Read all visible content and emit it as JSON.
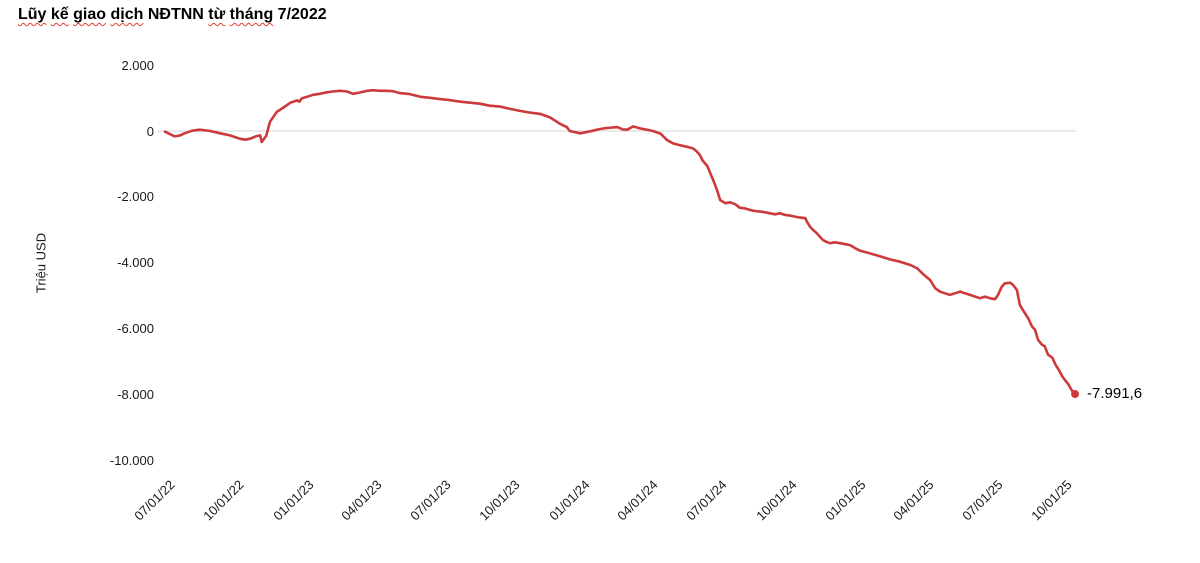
{
  "title": {
    "full_text": "Lũy kế giao dịch NĐTNN từ tháng 7/2022",
    "parts": [
      {
        "t": "Lũy",
        "wavy": true
      },
      {
        "t": "kế",
        "wavy": true
      },
      {
        "t": "giao",
        "wavy": true
      },
      {
        "t": "dịch",
        "wavy": true
      },
      {
        "t": "NĐTNN",
        "wavy": false
      },
      {
        "t": "từ",
        "wavy": true
      },
      {
        "t": "tháng",
        "wavy": true
      },
      {
        "t": "7/2022",
        "wavy": false
      }
    ]
  },
  "colors": {
    "line": "#cc3a3b",
    "gridline": "#dddddd",
    "squiggle": "#e53d2e",
    "axis_text": "#1a1a1a",
    "title_text": "#000000"
  },
  "chart_data": {
    "type": "line",
    "title": "Lũy kế giao dịch NĐTNN từ tháng 7/2022",
    "ylabel": "Triệu USD",
    "x_unit": "days since 2022-07-01",
    "ylim": [
      -10000,
      2000
    ],
    "grid": "zero-line only",
    "legend": "none",
    "end_label": "-7.991,6",
    "end_value": -7991.6,
    "y_ticks": [
      {
        "label": "2.000",
        "value": 2000
      },
      {
        "label": "0",
        "value": 0
      },
      {
        "label": "-2.000",
        "value": -2000
      },
      {
        "label": "-4.000",
        "value": -4000
      },
      {
        "label": "-6.000",
        "value": -6000
      },
      {
        "label": "-8.000",
        "value": -8000
      },
      {
        "label": "-10.000",
        "value": -10000
      }
    ],
    "x_ticks": [
      {
        "label": "07/01/22",
        "day": 0
      },
      {
        "label": "10/01/22",
        "day": 92
      },
      {
        "label": "01/01/23",
        "day": 184
      },
      {
        "label": "04/01/23",
        "day": 274
      },
      {
        "label": "07/01/23",
        "day": 365
      },
      {
        "label": "10/01/23",
        "day": 457
      },
      {
        "label": "01/01/24",
        "day": 549
      },
      {
        "label": "04/01/24",
        "day": 640
      },
      {
        "label": "07/01/24",
        "day": 731
      },
      {
        "label": "10/01/24",
        "day": 823
      },
      {
        "label": "01/01/25",
        "day": 915
      },
      {
        "label": "04/01/25",
        "day": 1005
      },
      {
        "label": "07/01/25",
        "day": 1096
      },
      {
        "label": "10/01/25",
        "day": 1188
      }
    ],
    "points": [
      [
        0,
        -20
      ],
      [
        7,
        -100
      ],
      [
        13,
        -165
      ],
      [
        20,
        -135
      ],
      [
        26,
        -70
      ],
      [
        36,
        10
      ],
      [
        46,
        40
      ],
      [
        60,
        0
      ],
      [
        73,
        -70
      ],
      [
        86,
        -135
      ],
      [
        99,
        -235
      ],
      [
        106,
        -265
      ],
      [
        113,
        -235
      ],
      [
        120,
        -165
      ],
      [
        126,
        -135
      ],
      [
        128,
        -335
      ],
      [
        134,
        -150
      ],
      [
        139,
        280
      ],
      [
        148,
        580
      ],
      [
        156,
        700
      ],
      [
        166,
        860
      ],
      [
        175,
        930
      ],
      [
        178,
        890
      ],
      [
        181,
        990
      ],
      [
        188,
        1040
      ],
      [
        196,
        1100
      ],
      [
        205,
        1130
      ],
      [
        215,
        1180
      ],
      [
        222,
        1200
      ],
      [
        232,
        1220
      ],
      [
        241,
        1200
      ],
      [
        249,
        1130
      ],
      [
        258,
        1170
      ],
      [
        268,
        1220
      ],
      [
        275,
        1240
      ],
      [
        285,
        1220
      ],
      [
        294,
        1220
      ],
      [
        302,
        1210
      ],
      [
        311,
        1150
      ],
      [
        324,
        1120
      ],
      [
        338,
        1040
      ],
      [
        351,
        1010
      ],
      [
        364,
        970
      ],
      [
        377,
        940
      ],
      [
        391,
        890
      ],
      [
        404,
        860
      ],
      [
        417,
        830
      ],
      [
        430,
        770
      ],
      [
        444,
        740
      ],
      [
        457,
        670
      ],
      [
        470,
        610
      ],
      [
        483,
        560
      ],
      [
        497,
        520
      ],
      [
        510,
        410
      ],
      [
        523,
        220
      ],
      [
        532,
        120
      ],
      [
        536,
        0
      ],
      [
        550,
        -70
      ],
      [
        563,
        -10
      ],
      [
        576,
        60
      ],
      [
        585,
        90
      ],
      [
        599,
        120
      ],
      [
        606,
        50
      ],
      [
        612,
        40
      ],
      [
        620,
        140
      ],
      [
        629,
        80
      ],
      [
        638,
        40
      ],
      [
        646,
        0
      ],
      [
        656,
        -80
      ],
      [
        665,
        -280
      ],
      [
        673,
        -380
      ],
      [
        682,
        -430
      ],
      [
        691,
        -480
      ],
      [
        699,
        -530
      ],
      [
        704,
        -620
      ],
      [
        708,
        -720
      ],
      [
        712,
        -900
      ],
      [
        718,
        -1060
      ],
      [
        722,
        -1280
      ],
      [
        726,
        -1500
      ],
      [
        731,
        -1800
      ],
      [
        735,
        -2095
      ],
      [
        742,
        -2195
      ],
      [
        748,
        -2165
      ],
      [
        755,
        -2225
      ],
      [
        761,
        -2330
      ],
      [
        768,
        -2350
      ],
      [
        775,
        -2400
      ],
      [
        781,
        -2430
      ],
      [
        788,
        -2450
      ],
      [
        795,
        -2470
      ],
      [
        801,
        -2500
      ],
      [
        808,
        -2530
      ],
      [
        814,
        -2500
      ],
      [
        821,
        -2550
      ],
      [
        828,
        -2570
      ],
      [
        834,
        -2600
      ],
      [
        841,
        -2630
      ],
      [
        848,
        -2650
      ],
      [
        850,
        -2755
      ],
      [
        854,
        -2905
      ],
      [
        858,
        -3005
      ],
      [
        863,
        -3105
      ],
      [
        867,
        -3210
      ],
      [
        871,
        -3310
      ],
      [
        877,
        -3380
      ],
      [
        881,
        -3410
      ],
      [
        887,
        -3380
      ],
      [
        894,
        -3410
      ],
      [
        901,
        -3440
      ],
      [
        907,
        -3465
      ],
      [
        913,
        -3550
      ],
      [
        920,
        -3635
      ],
      [
        933,
        -3715
      ],
      [
        946,
        -3800
      ],
      [
        960,
        -3900
      ],
      [
        973,
        -3970
      ],
      [
        987,
        -4070
      ],
      [
        996,
        -4170
      ],
      [
        1003,
        -4330
      ],
      [
        1009,
        -4450
      ],
      [
        1013,
        -4525
      ],
      [
        1020,
        -4780
      ],
      [
        1026,
        -4880
      ],
      [
        1033,
        -4930
      ],
      [
        1039,
        -4980
      ],
      [
        1046,
        -4930
      ],
      [
        1053,
        -4880
      ],
      [
        1059,
        -4930
      ],
      [
        1066,
        -4980
      ],
      [
        1073,
        -5030
      ],
      [
        1079,
        -5080
      ],
      [
        1086,
        -5030
      ],
      [
        1092,
        -5080
      ],
      [
        1099,
        -5110
      ],
      [
        1103,
        -4980
      ],
      [
        1108,
        -4730
      ],
      [
        1112,
        -4630
      ],
      [
        1119,
        -4610
      ],
      [
        1123,
        -4680
      ],
      [
        1128,
        -4830
      ],
      [
        1132,
        -5290
      ],
      [
        1136,
        -5440
      ],
      [
        1143,
        -5690
      ],
      [
        1148,
        -5940
      ],
      [
        1152,
        -6040
      ],
      [
        1156,
        -6340
      ],
      [
        1161,
        -6490
      ],
      [
        1165,
        -6540
      ],
      [
        1169,
        -6790
      ],
      [
        1175,
        -6890
      ],
      [
        1179,
        -7090
      ],
      [
        1183,
        -7240
      ],
      [
        1189,
        -7490
      ],
      [
        1196,
        -7690
      ],
      [
        1202,
        -7930
      ],
      [
        1205,
        -7991.6
      ]
    ]
  }
}
